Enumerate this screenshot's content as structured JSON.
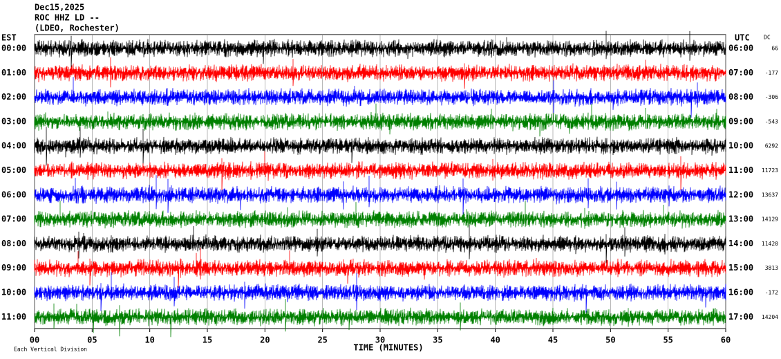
{
  "chart_data": {
    "type": "helicorder",
    "title": [
      "Dec15,2025",
      "ROC HHZ LD --",
      "(LDEO, Rochester)"
    ],
    "left_header": "EST",
    "right_header": "UTC",
    "dc_header": "DC",
    "xlabel": "TIME (MINUTES)",
    "footnote": "Each Vertical Division",
    "xlim": [
      0,
      60
    ],
    "xticks": [
      {
        "value": 0,
        "label": "00"
      },
      {
        "value": 5,
        "label": "05"
      },
      10,
      15,
      20,
      25,
      30,
      35,
      40,
      45,
      50,
      55,
      60
    ],
    "colors": [
      "#000000",
      "#ff0000",
      "#0000ff",
      "#008000"
    ],
    "rows": [
      {
        "est": "00:00",
        "utc": "06:00",
        "dc": 66
      },
      {
        "est": "01:00",
        "utc": "07:00",
        "dc": -177
      },
      {
        "est": "02:00",
        "utc": "08:00",
        "dc": -306
      },
      {
        "est": "03:00",
        "utc": "09:00",
        "dc": -543
      },
      {
        "est": "04:00",
        "utc": "10:00",
        "dc": 6292
      },
      {
        "est": "05:00",
        "utc": "11:00",
        "dc": 11723
      },
      {
        "est": "06:00",
        "utc": "12:00",
        "dc": 13637
      },
      {
        "est": "07:00",
        "utc": "13:00",
        "dc": 14129
      },
      {
        "est": "08:00",
        "utc": "14:00",
        "dc": 11420
      },
      {
        "est": "09:00",
        "utc": "15:00",
        "dc": 3813
      },
      {
        "est": "10:00",
        "utc": "16:00",
        "dc": -172
      },
      {
        "est": "11:00",
        "utc": "17:00",
        "dc": 14204
      }
    ]
  }
}
